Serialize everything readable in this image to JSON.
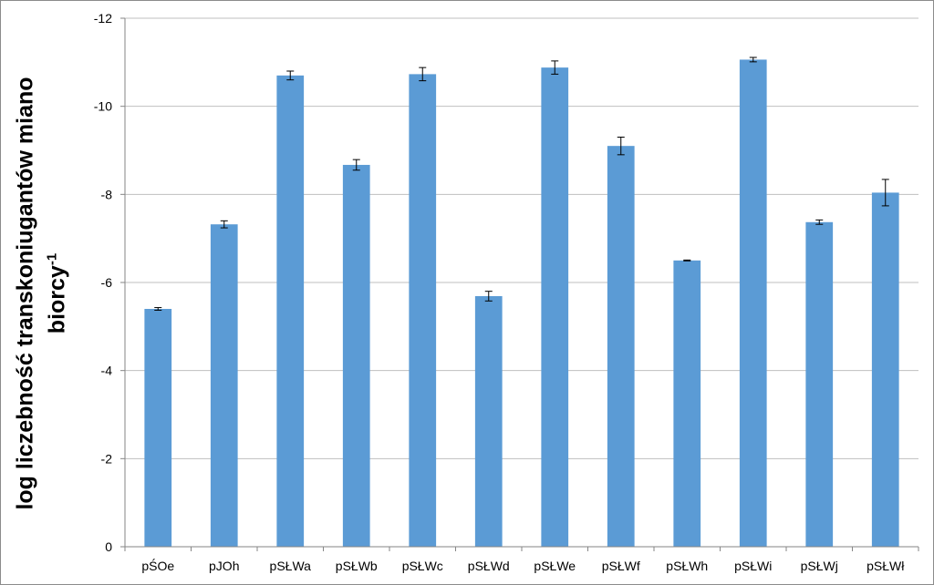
{
  "chart_data": {
    "type": "bar",
    "title": "",
    "xlabel": "",
    "ylabel_line1": "log  liczebność transkoniugantów miano",
    "ylabel_line2": "biorcy",
    "ylabel_sup": "-1",
    "categories": [
      "pŚOe",
      "pJOh",
      "pSŁWa",
      "pSŁWb",
      "pSŁWc",
      "pSŁWd",
      "pSŁWe",
      "pSŁWf",
      "pSŁWh",
      "pSŁWi",
      "pSŁWj",
      "pSŁWł"
    ],
    "values": [
      -5.4,
      -7.32,
      -10.7,
      -8.67,
      -10.73,
      -5.69,
      -10.88,
      -9.1,
      -6.5,
      -11.06,
      -7.37,
      -8.04
    ],
    "errors": [
      0.03,
      0.08,
      0.1,
      0.12,
      0.15,
      0.11,
      0.15,
      0.2,
      0.01,
      0.05,
      0.05,
      0.3
    ],
    "ylim": [
      0,
      -12
    ],
    "yticks": [
      "0",
      "-2",
      "-4",
      "-6",
      "-8",
      "-10",
      "-12"
    ],
    "ytick_values": [
      0,
      -2,
      -4,
      -6,
      -8,
      -10,
      -12
    ],
    "grid": true,
    "legend": "none",
    "bar_color": "#5b9bd5",
    "grid_color": "#bfbfbf"
  }
}
